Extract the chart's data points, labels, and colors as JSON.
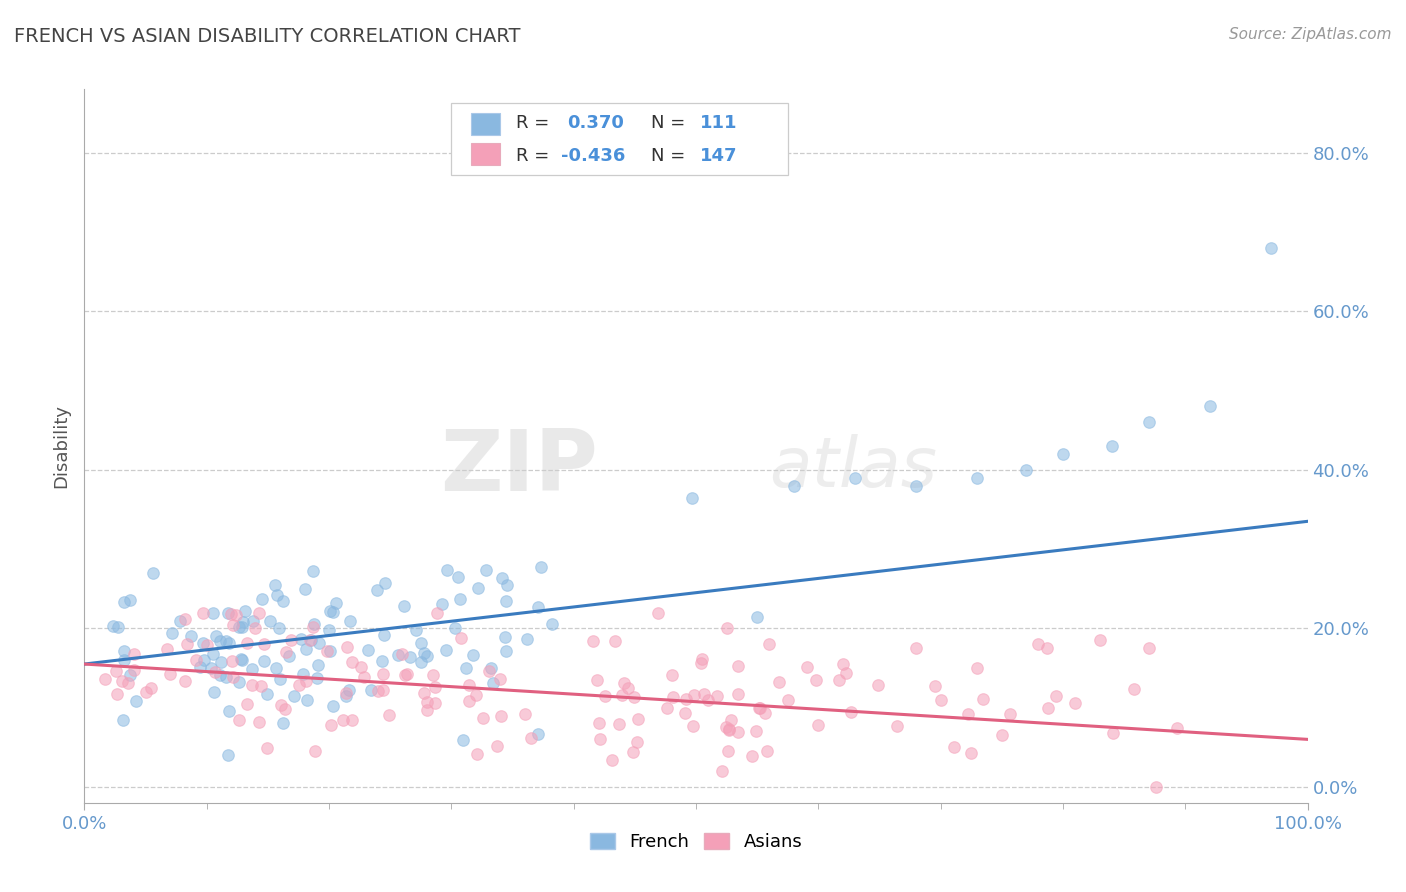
{
  "title": "FRENCH VS ASIAN DISABILITY CORRELATION CHART",
  "source": "Source: ZipAtlas.com",
  "ylabel": "Disability",
  "xlim": [
    0.0,
    1.0
  ],
  "ylim": [
    -0.02,
    0.88
  ],
  "ytick_labels": [
    "0.0%",
    "20.0%",
    "40.0%",
    "60.0%",
    "80.0%"
  ],
  "ytick_values": [
    0.0,
    0.2,
    0.4,
    0.6,
    0.8
  ],
  "xtick_labels": [
    "0.0%",
    "100.0%"
  ],
  "xtick_values": [
    0.0,
    1.0
  ],
  "french_R": 0.37,
  "french_N": 111,
  "asian_R": -0.436,
  "asian_N": 147,
  "french_color": "#8ab8e0",
  "asian_color": "#f4a0b8",
  "french_line_color": "#3a7bbf",
  "asian_line_color": "#e06080",
  "watermark_zip": "ZIP",
  "watermark_atlas": "atlas",
  "legend_R_color": "#4a90d9",
  "legend_N_color": "#4a90d9",
  "background_color": "#ffffff",
  "grid_color": "#cccccc",
  "title_color": "#444444",
  "tick_label_color": "#6699cc",
  "ylabel_color": "#555555",
  "french_line_start_y": 0.155,
  "french_line_end_y": 0.335,
  "asian_line_start_y": 0.155,
  "asian_line_end_y": 0.06
}
